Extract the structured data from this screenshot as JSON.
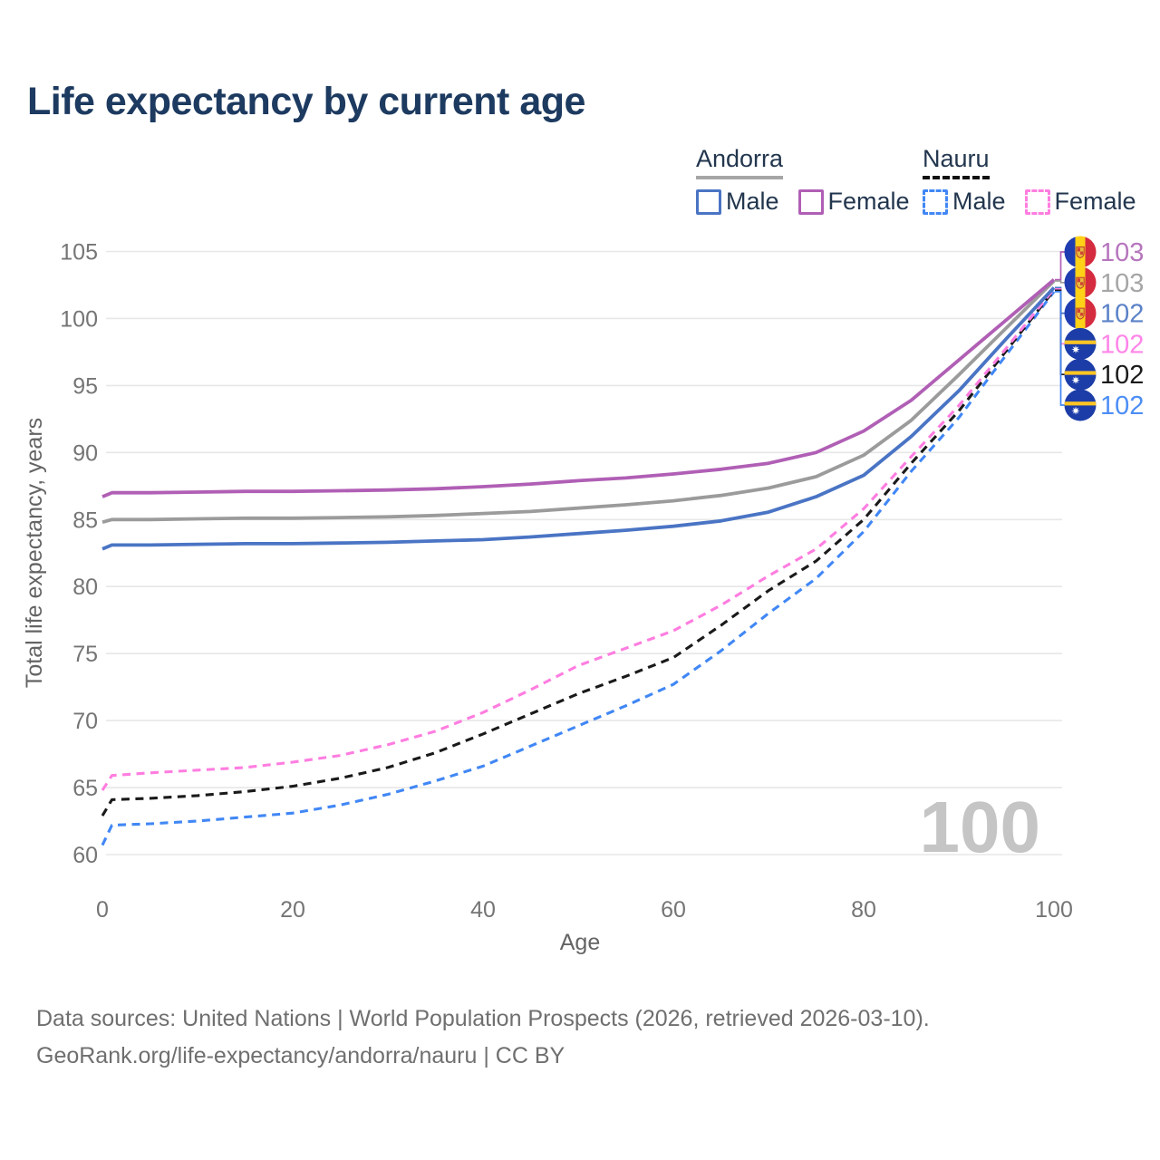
{
  "title": "Life expectancy by current age",
  "watermark_age": "100",
  "legend": {
    "groups": [
      {
        "country": "Andorra",
        "underline_style": "solid",
        "underline_color": "#a6a6a6",
        "items": [
          {
            "label": "Male",
            "color": "#4a74c4",
            "dashed": false
          },
          {
            "label": "Female",
            "color": "#b05fb5",
            "dashed": false
          }
        ]
      },
      {
        "country": "Nauru",
        "underline_style": "dashed",
        "underline_color": "#121212",
        "items": [
          {
            "label": "Male",
            "color": "#4187f5",
            "dashed": true
          },
          {
            "label": "Female",
            "color": "#ff7de0",
            "dashed": true
          }
        ]
      }
    ]
  },
  "chart_data": {
    "type": "line",
    "title": "Life expectancy by current age",
    "xlabel": "Age",
    "ylabel": "Total life expectancy, years",
    "xlim": [
      0,
      100
    ],
    "ylim": [
      60,
      105
    ],
    "xticks": [
      0,
      20,
      40,
      60,
      80,
      100
    ],
    "yticks": [
      60,
      65,
      70,
      75,
      80,
      85,
      90,
      95,
      100,
      105
    ],
    "grid": "horizontal",
    "legend_position": "top-right",
    "x": [
      0,
      1,
      5,
      10,
      15,
      20,
      25,
      30,
      35,
      40,
      45,
      50,
      55,
      60,
      65,
      70,
      75,
      80,
      85,
      90,
      95,
      100
    ],
    "series": [
      {
        "name": "Andorra Female",
        "country": "Andorra",
        "sex": "Female",
        "line_style": "solid",
        "color": "#b05fb5",
        "label_color": "#b676bd",
        "end_label": "103",
        "flag": "andorra-flag-icon",
        "values": [
          86.7,
          87.0,
          87.0,
          87.05,
          87.1,
          87.1,
          87.15,
          87.2,
          87.3,
          87.45,
          87.65,
          87.9,
          88.1,
          88.4,
          88.75,
          89.2,
          90.0,
          91.6,
          93.9,
          96.9,
          99.9,
          102.9
        ]
      },
      {
        "name": "Andorra",
        "country": "Andorra",
        "sex": "Both",
        "line_style": "solid",
        "color": "#9b9b9b",
        "label_color": "#a6a6a6",
        "end_label": "103",
        "flag": "andorra-flag-icon",
        "values": [
          84.8,
          85.0,
          85.0,
          85.05,
          85.1,
          85.1,
          85.15,
          85.2,
          85.3,
          85.45,
          85.6,
          85.85,
          86.1,
          86.4,
          86.8,
          87.35,
          88.2,
          89.8,
          92.4,
          95.8,
          99.3,
          102.8
        ]
      },
      {
        "name": "Andorra Male",
        "country": "Andorra",
        "sex": "Male",
        "line_style": "solid",
        "color": "#4a74c4",
        "label_color": "#5b82c8",
        "end_label": "102",
        "flag": "andorra-flag-icon",
        "values": [
          82.8,
          83.1,
          83.1,
          83.15,
          83.2,
          83.2,
          83.25,
          83.3,
          83.4,
          83.5,
          83.7,
          83.95,
          84.2,
          84.5,
          84.9,
          85.55,
          86.7,
          88.3,
          91.2,
          94.6,
          98.5,
          102.3
        ]
      },
      {
        "name": "Nauru Female",
        "country": "Nauru",
        "sex": "Female",
        "line_style": "dashed",
        "color": "#ff7de0",
        "label_color": "#ff85e8",
        "end_label": "102",
        "flag": "nauru-flag-icon",
        "values": [
          64.8,
          65.9,
          66.1,
          66.3,
          66.5,
          66.9,
          67.4,
          68.2,
          69.2,
          70.6,
          72.3,
          74.1,
          75.4,
          76.7,
          78.6,
          80.8,
          82.8,
          85.8,
          89.7,
          93.5,
          97.8,
          102.2
        ]
      },
      {
        "name": "Nauru",
        "country": "Nauru",
        "sex": "Both",
        "line_style": "dashed",
        "color": "#1a1a1a",
        "label_color": "#1a1a1a",
        "end_label": "102",
        "flag": "nauru-flag-icon",
        "values": [
          62.9,
          64.1,
          64.2,
          64.4,
          64.7,
          65.1,
          65.7,
          66.5,
          67.6,
          69.0,
          70.5,
          72.0,
          73.3,
          74.7,
          77.1,
          79.7,
          81.9,
          85.0,
          89.2,
          93.1,
          97.6,
          102.1
        ]
      },
      {
        "name": "Nauru Male",
        "country": "Nauru",
        "sex": "Male",
        "line_style": "dashed",
        "color": "#4187f5",
        "label_color": "#4d8ef5",
        "end_label": "102",
        "flag": "nauru-flag-icon",
        "values": [
          60.7,
          62.2,
          62.3,
          62.5,
          62.8,
          63.1,
          63.7,
          64.5,
          65.5,
          66.6,
          68.1,
          69.6,
          71.1,
          72.7,
          75.2,
          78.0,
          80.6,
          84.1,
          88.6,
          92.6,
          97.3,
          102.0
        ]
      }
    ]
  },
  "footer": {
    "line1": "Data sources: United Nations | World Population Prospects (2026, retrieved 2026-03-10).",
    "line2": "GeoRank.org/life-expectancy/andorra/nauru | CC BY"
  }
}
